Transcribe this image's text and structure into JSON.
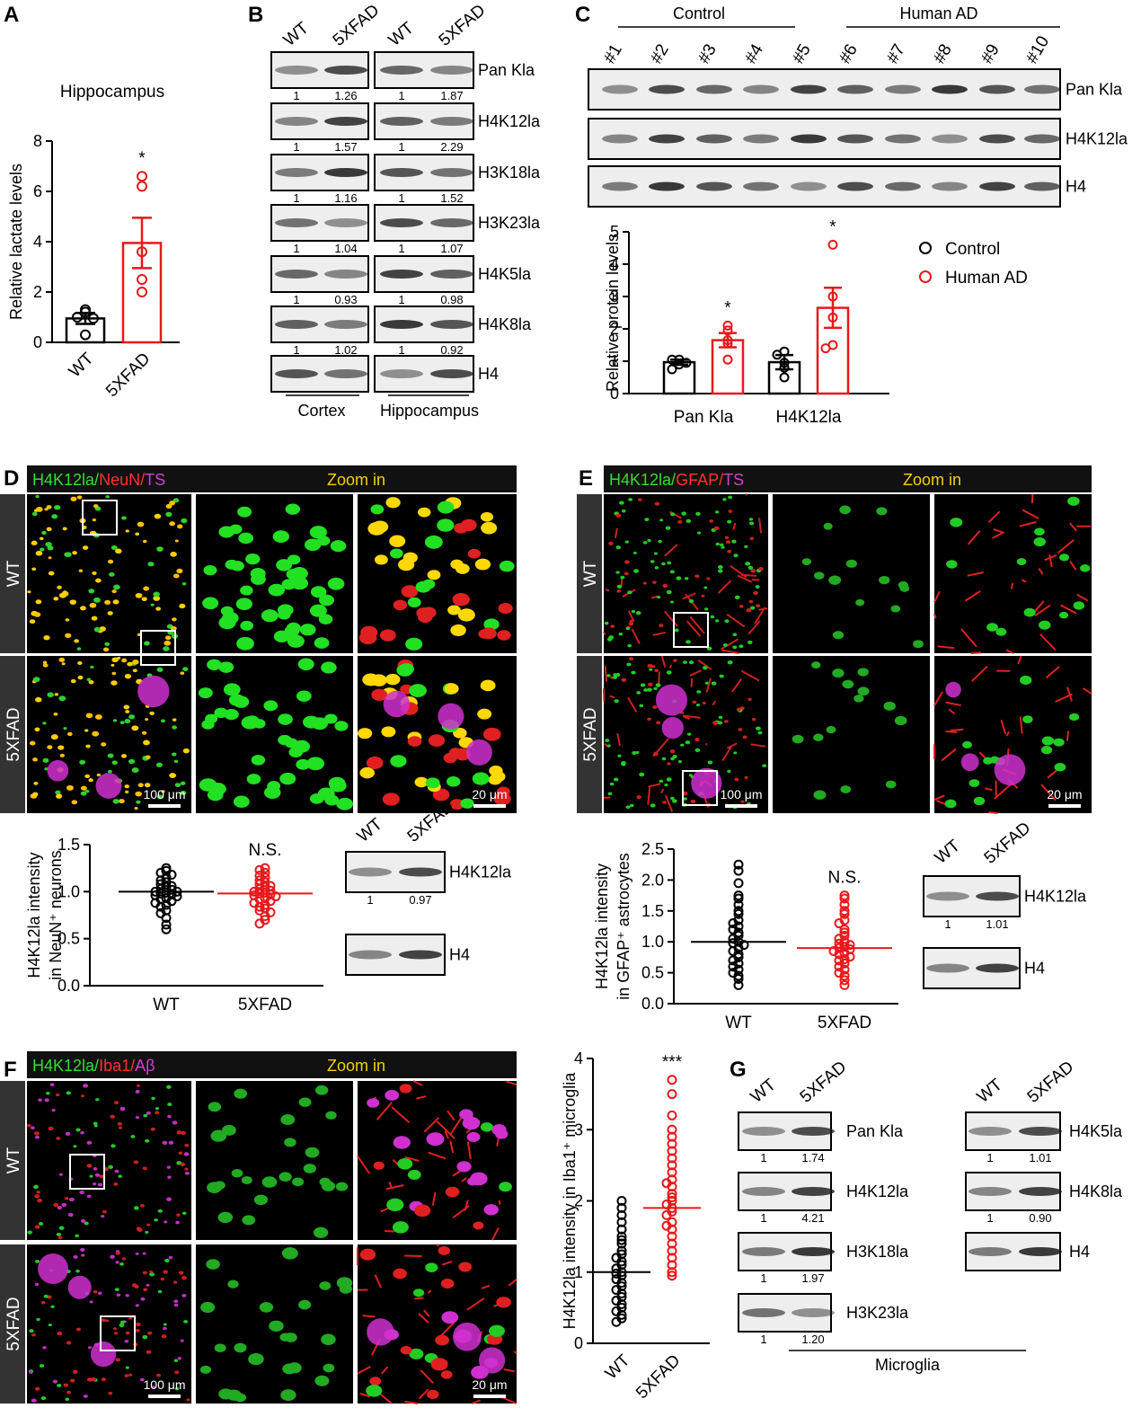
{
  "panel_letters": [
    "A",
    "B",
    "C",
    "D",
    "E",
    "F",
    "G"
  ],
  "chart_data": [
    {
      "type": "bar",
      "title": "Hippocampus",
      "y_label": "Relative lactate levels",
      "categories": [
        "WT",
        "5XFAD"
      ],
      "colors": [
        "#000000",
        "#e8191c"
      ],
      "values": [
        0.95,
        3.95
      ],
      "errors": [
        0.22,
        1.0
      ],
      "points": [
        [
          1.3,
          1.2,
          1.0,
          0.95,
          0.3
        ],
        [
          6.6,
          6.2,
          3.6,
          2.5,
          2.0
        ]
      ],
      "ylim": [
        0,
        8
      ],
      "yticks": [
        0,
        2,
        4,
        6,
        8
      ],
      "annotations": [
        {
          "category": "5XFAD",
          "text": "*"
        }
      ]
    },
    {
      "type": "grouped-bar",
      "y_label": "Relative protein levels",
      "categories": [
        "Pan Kla",
        "H4K12la"
      ],
      "series": [
        {
          "name": "Control",
          "color": "#000000",
          "values": [
            0.97,
            0.97
          ],
          "errors": [
            0.08,
            0.22
          ],
          "points": [
            [
              1.05,
              1.05,
              0.95,
              0.9,
              0.75
            ],
            [
              1.3,
              1.2,
              0.95,
              0.8,
              0.5
            ]
          ]
        },
        {
          "name": "Human AD",
          "color": "#e8191c",
          "values": [
            1.65,
            2.65
          ],
          "errors": [
            0.22,
            0.62
          ],
          "points": [
            [
              2.1,
              1.95,
              1.65,
              1.55,
              1.05
            ],
            [
              4.6,
              3.0,
              2.35,
              1.5,
              1.4
            ]
          ]
        }
      ],
      "ylim": [
        0,
        5
      ],
      "yticks": [
        0,
        1,
        2,
        3,
        4,
        5
      ],
      "annotations": [
        {
          "category": "Pan Kla",
          "series": "Human AD",
          "text": "*"
        },
        {
          "category": "H4K12la",
          "series": "Human AD",
          "text": "*"
        }
      ]
    },
    {
      "type": "dot",
      "y_label": [
        "H4K12la intensity",
        "in NeuN⁺ neurons"
      ],
      "categories": [
        "WT",
        "5XFAD"
      ],
      "colors": [
        "#000000",
        "#e8191c"
      ],
      "values": [
        1.0,
        0.98
      ],
      "points": [
        [
          1.25,
          1.22,
          1.2,
          1.18,
          1.15,
          1.12,
          1.1,
          1.08,
          1.06,
          1.05,
          1.03,
          1.02,
          1.0,
          1.0,
          0.99,
          0.98,
          0.97,
          0.96,
          0.95,
          0.93,
          0.92,
          0.9,
          0.88,
          0.86,
          0.84,
          0.8,
          0.77,
          0.72,
          0.65,
          0.6
        ],
        [
          1.25,
          1.23,
          1.2,
          1.17,
          1.15,
          1.12,
          1.1,
          1.08,
          1.06,
          1.05,
          1.03,
          1.01,
          1.0,
          0.99,
          0.98,
          0.97,
          0.96,
          0.95,
          0.93,
          0.92,
          0.9,
          0.88,
          0.86,
          0.84,
          0.82,
          0.8,
          0.78,
          0.74,
          0.7,
          0.66
        ]
      ],
      "ylim": [
        0,
        1.5
      ],
      "yticks": [
        {
          "value": 0,
          "label": "0.0"
        },
        {
          "value": 0.5,
          "label": "0.5"
        },
        {
          "value": 1,
          "label": "1.0"
        },
        {
          "value": 1.5,
          "label": "1.5"
        }
      ],
      "annotations": [
        {
          "category": "5XFAD",
          "text": "N.S."
        }
      ]
    },
    {
      "type": "dot",
      "y_label": [
        "H4K12la intensity",
        "in GFAP⁺ astrocytes"
      ],
      "categories": [
        "WT",
        "5XFAD"
      ],
      "colors": [
        "#000000",
        "#e8191c"
      ],
      "values": [
        1.0,
        0.9
      ],
      "points": [
        [
          2.25,
          2.15,
          1.95,
          1.75,
          1.7,
          1.6,
          1.5,
          1.45,
          1.35,
          1.3,
          1.25,
          1.2,
          1.15,
          1.1,
          1.05,
          1.0,
          0.98,
          0.95,
          0.9,
          0.85,
          0.8,
          0.75,
          0.7,
          0.65,
          0.6,
          0.55,
          0.5,
          0.45,
          0.4,
          0.3
        ],
        [
          1.75,
          1.7,
          1.6,
          1.5,
          1.45,
          1.35,
          1.3,
          1.2,
          1.15,
          1.1,
          1.05,
          1.0,
          0.97,
          0.95,
          0.92,
          0.9,
          0.88,
          0.85,
          0.82,
          0.8,
          0.76,
          0.72,
          0.7,
          0.65,
          0.6,
          0.55,
          0.5,
          0.45,
          0.38,
          0.3
        ]
      ],
      "ylim": [
        0,
        2.5
      ],
      "yticks": [
        {
          "value": 0,
          "label": "0.0"
        },
        {
          "value": 0.5,
          "label": "0.5"
        },
        {
          "value": 1,
          "label": "1.0"
        },
        {
          "value": 1.5,
          "label": "1.5"
        },
        {
          "value": 2,
          "label": "2.0"
        },
        {
          "value": 2.5,
          "label": "2.5"
        }
      ],
      "annotations": [
        {
          "category": "5XFAD",
          "text": "N.S."
        }
      ]
    },
    {
      "type": "dot",
      "y_label": "H4K12la intensity in Iba1⁺ microglia",
      "categories": [
        "WT",
        "5XFAD"
      ],
      "colors": [
        "#000000",
        "#e8191c"
      ],
      "values": [
        1.0,
        1.9
      ],
      "points": [
        [
          2.0,
          1.9,
          1.8,
          1.7,
          1.6,
          1.5,
          1.45,
          1.4,
          1.3,
          1.25,
          1.2,
          1.15,
          1.1,
          1.05,
          1.0,
          0.98,
          0.95,
          0.9,
          0.85,
          0.8,
          0.75,
          0.7,
          0.65,
          0.6,
          0.55,
          0.5,
          0.45,
          0.4,
          0.35,
          0.3
        ],
        [
          3.7,
          3.5,
          3.2,
          3.0,
          2.9,
          2.8,
          2.7,
          2.6,
          2.5,
          2.4,
          2.3,
          2.25,
          2.2,
          2.1,
          2.05,
          2.0,
          1.95,
          1.9,
          1.85,
          1.8,
          1.7,
          1.65,
          1.6,
          1.5,
          1.4,
          1.3,
          1.2,
          1.1,
          1.0,
          0.95
        ]
      ],
      "ylim": [
        0,
        4
      ],
      "yticks": [
        0,
        1,
        2,
        3,
        4
      ],
      "annotations": [
        {
          "category": "5XFAD",
          "text": "***"
        }
      ]
    }
  ],
  "blots": [
    {
      "lanes": [
        "WT",
        "5XFAD",
        "WT",
        "5XFAD"
      ],
      "rows": [
        {
          "label": "Pan Kla",
          "quant": [
            "1",
            "1.26",
            "1",
            "1.87"
          ]
        },
        {
          "label": "H4K12la",
          "quant": [
            "1",
            "1.57",
            "1",
            "2.29"
          ]
        },
        {
          "label": "H3K18la",
          "quant": [
            "1",
            "1.16",
            "1",
            "1.52"
          ]
        },
        {
          "label": "H3K23la",
          "quant": [
            "1",
            "1.04",
            "1",
            "1.07"
          ]
        },
        {
          "label": "H4K5la",
          "quant": [
            "1",
            "0.93",
            "1",
            "0.98"
          ]
        },
        {
          "label": "H4K8la",
          "quant": [
            "1",
            "1.02",
            "1",
            "0.92"
          ]
        },
        {
          "label": "H4"
        }
      ],
      "groups": [
        "Cortex",
        "Hippocampus"
      ]
    },
    {
      "lanes": [
        "#1",
        "#2",
        "#3",
        "#4",
        "#5",
        "#6",
        "#7",
        "#8",
        "#9",
        "#10"
      ],
      "rows": [
        {
          "label": "Pan Kla"
        },
        {
          "label": "H4K12la"
        },
        {
          "label": "H4"
        }
      ],
      "groups": [
        "Control",
        "Human AD"
      ]
    },
    {
      "lanes": [
        "WT",
        "5XFAD"
      ],
      "rows": [
        {
          "label": "H4K12la",
          "quant": [
            "1",
            "0.97"
          ]
        },
        {
          "label": "H4"
        }
      ]
    },
    {
      "lanes": [
        "WT",
        "5XFAD"
      ],
      "rows": [
        {
          "label": "H4K12la",
          "quant": [
            "1",
            "1.01"
          ]
        },
        {
          "label": "H4"
        }
      ]
    },
    {
      "lanes": [
        "WT",
        "5XFAD"
      ],
      "rows": [
        {
          "label": "Pan Kla",
          "quant": [
            "1",
            "1.74"
          ]
        },
        {
          "label": "H4K12la",
          "quant": [
            "1",
            "4.21"
          ]
        },
        {
          "label": "H3K18la",
          "quant": [
            "1",
            "1.97"
          ]
        },
        {
          "label": "H3K23la",
          "quant": [
            "1",
            "1.20"
          ]
        }
      ],
      "groups": [
        "Microglia"
      ]
    },
    {
      "lanes": [
        "WT",
        "5XFAD"
      ],
      "rows": [
        {
          "label": "H4K5la",
          "quant": [
            "1",
            "1.01"
          ]
        },
        {
          "label": "H4K8la",
          "quant": [
            "1",
            "0.90"
          ]
        },
        {
          "label": "H4"
        }
      ]
    }
  ],
  "micrographs": [
    {
      "stain": [
        "H4K12la/",
        "NeuN/",
        "TS"
      ],
      "stain_colors": [
        "#33dd33",
        "#ff3030",
        "#d040d0"
      ],
      "zoom": "Zoom in",
      "rows": [
        "WT",
        "5XFAD"
      ],
      "scale_bars": [
        "100 μm",
        "20 μm"
      ]
    },
    {
      "stain": [
        "H4K12la/",
        "GFAP/",
        "TS"
      ],
      "stain_colors": [
        "#33dd33",
        "#ff3030",
        "#d040d0"
      ],
      "zoom": "Zoom in",
      "rows": [
        "WT",
        "5XFAD"
      ],
      "scale_bars": [
        "100 μm",
        "20 μm"
      ]
    },
    {
      "stain": [
        "H4K12la/",
        "Iba1/",
        "Aβ"
      ],
      "stain_colors": [
        "#33dd33",
        "#ff3030",
        "#d040d0"
      ],
      "zoom": "Zoom in",
      "rows": [
        "WT",
        "5XFAD"
      ],
      "scale_bars": [
        "100 μm",
        "20 μm"
      ]
    }
  ]
}
